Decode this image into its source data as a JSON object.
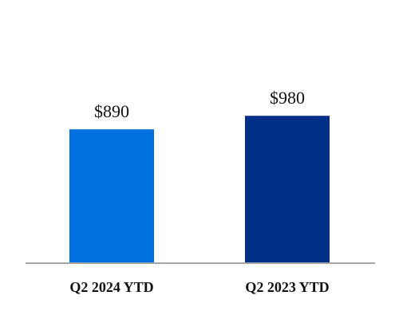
{
  "chart_data": {
    "type": "bar",
    "title": "",
    "xlabel": "",
    "ylabel": "",
    "categories": [
      "Q2 2024 YTD",
      "Q2 2023 YTD"
    ],
    "values": [
      890,
      980
    ],
    "value_labels": [
      "$890",
      "$980"
    ],
    "colors": [
      "#0070e0",
      "#003087"
    ],
    "axis_color": "#a6a6a6",
    "ylim": [
      0,
      1750
    ],
    "grid": false,
    "legend": "none"
  }
}
